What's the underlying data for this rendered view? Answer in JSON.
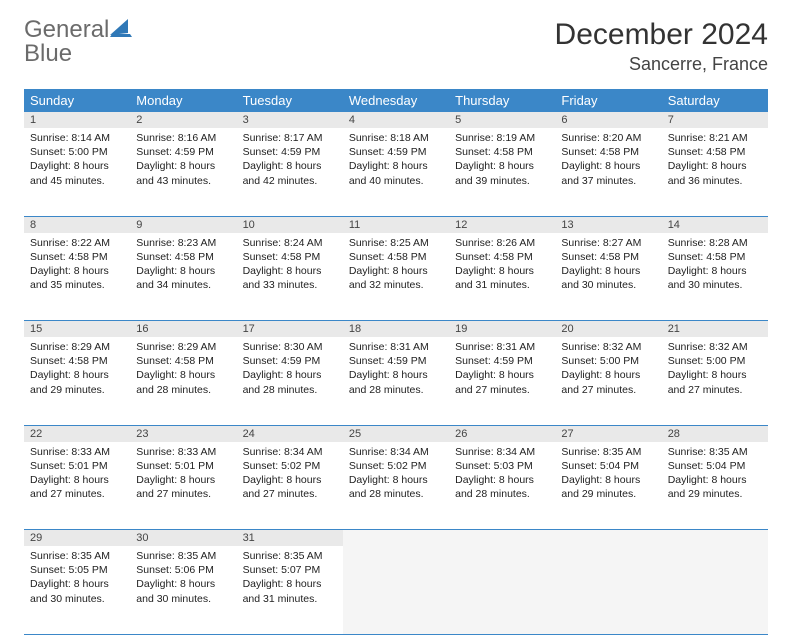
{
  "logo": {
    "text1": "General",
    "text2": "Blue"
  },
  "title": "December 2024",
  "location": "Sancerre, France",
  "colors": {
    "header_bg": "#3b87c8",
    "header_fg": "#ffffff",
    "daynum_bg": "#e9e9e9",
    "rule": "#3b87c8",
    "logo_gray": "#6b6b6b",
    "logo_blue": "#2f78b7"
  },
  "weekdays": [
    "Sunday",
    "Monday",
    "Tuesday",
    "Wednesday",
    "Thursday",
    "Friday",
    "Saturday"
  ],
  "weeks": [
    [
      {
        "n": "1",
        "sr": "8:14 AM",
        "ss": "5:00 PM",
        "dl": "8 hours and 45 minutes."
      },
      {
        "n": "2",
        "sr": "8:16 AM",
        "ss": "4:59 PM",
        "dl": "8 hours and 43 minutes."
      },
      {
        "n": "3",
        "sr": "8:17 AM",
        "ss": "4:59 PM",
        "dl": "8 hours and 42 minutes."
      },
      {
        "n": "4",
        "sr": "8:18 AM",
        "ss": "4:59 PM",
        "dl": "8 hours and 40 minutes."
      },
      {
        "n": "5",
        "sr": "8:19 AM",
        "ss": "4:58 PM",
        "dl": "8 hours and 39 minutes."
      },
      {
        "n": "6",
        "sr": "8:20 AM",
        "ss": "4:58 PM",
        "dl": "8 hours and 37 minutes."
      },
      {
        "n": "7",
        "sr": "8:21 AM",
        "ss": "4:58 PM",
        "dl": "8 hours and 36 minutes."
      }
    ],
    [
      {
        "n": "8",
        "sr": "8:22 AM",
        "ss": "4:58 PM",
        "dl": "8 hours and 35 minutes."
      },
      {
        "n": "9",
        "sr": "8:23 AM",
        "ss": "4:58 PM",
        "dl": "8 hours and 34 minutes."
      },
      {
        "n": "10",
        "sr": "8:24 AM",
        "ss": "4:58 PM",
        "dl": "8 hours and 33 minutes."
      },
      {
        "n": "11",
        "sr": "8:25 AM",
        "ss": "4:58 PM",
        "dl": "8 hours and 32 minutes."
      },
      {
        "n": "12",
        "sr": "8:26 AM",
        "ss": "4:58 PM",
        "dl": "8 hours and 31 minutes."
      },
      {
        "n": "13",
        "sr": "8:27 AM",
        "ss": "4:58 PM",
        "dl": "8 hours and 30 minutes."
      },
      {
        "n": "14",
        "sr": "8:28 AM",
        "ss": "4:58 PM",
        "dl": "8 hours and 30 minutes."
      }
    ],
    [
      {
        "n": "15",
        "sr": "8:29 AM",
        "ss": "4:58 PM",
        "dl": "8 hours and 29 minutes."
      },
      {
        "n": "16",
        "sr": "8:29 AM",
        "ss": "4:58 PM",
        "dl": "8 hours and 28 minutes."
      },
      {
        "n": "17",
        "sr": "8:30 AM",
        "ss": "4:59 PM",
        "dl": "8 hours and 28 minutes."
      },
      {
        "n": "18",
        "sr": "8:31 AM",
        "ss": "4:59 PM",
        "dl": "8 hours and 28 minutes."
      },
      {
        "n": "19",
        "sr": "8:31 AM",
        "ss": "4:59 PM",
        "dl": "8 hours and 27 minutes."
      },
      {
        "n": "20",
        "sr": "8:32 AM",
        "ss": "5:00 PM",
        "dl": "8 hours and 27 minutes."
      },
      {
        "n": "21",
        "sr": "8:32 AM",
        "ss": "5:00 PM",
        "dl": "8 hours and 27 minutes."
      }
    ],
    [
      {
        "n": "22",
        "sr": "8:33 AM",
        "ss": "5:01 PM",
        "dl": "8 hours and 27 minutes."
      },
      {
        "n": "23",
        "sr": "8:33 AM",
        "ss": "5:01 PM",
        "dl": "8 hours and 27 minutes."
      },
      {
        "n": "24",
        "sr": "8:34 AM",
        "ss": "5:02 PM",
        "dl": "8 hours and 27 minutes."
      },
      {
        "n": "25",
        "sr": "8:34 AM",
        "ss": "5:02 PM",
        "dl": "8 hours and 28 minutes."
      },
      {
        "n": "26",
        "sr": "8:34 AM",
        "ss": "5:03 PM",
        "dl": "8 hours and 28 minutes."
      },
      {
        "n": "27",
        "sr": "8:35 AM",
        "ss": "5:04 PM",
        "dl": "8 hours and 29 minutes."
      },
      {
        "n": "28",
        "sr": "8:35 AM",
        "ss": "5:04 PM",
        "dl": "8 hours and 29 minutes."
      }
    ],
    [
      {
        "n": "29",
        "sr": "8:35 AM",
        "ss": "5:05 PM",
        "dl": "8 hours and 30 minutes."
      },
      {
        "n": "30",
        "sr": "8:35 AM",
        "ss": "5:06 PM",
        "dl": "8 hours and 30 minutes."
      },
      {
        "n": "31",
        "sr": "8:35 AM",
        "ss": "5:07 PM",
        "dl": "8 hours and 31 minutes."
      },
      null,
      null,
      null,
      null
    ]
  ],
  "labels": {
    "sunrise": "Sunrise:",
    "sunset": "Sunset:",
    "daylight": "Daylight:"
  }
}
